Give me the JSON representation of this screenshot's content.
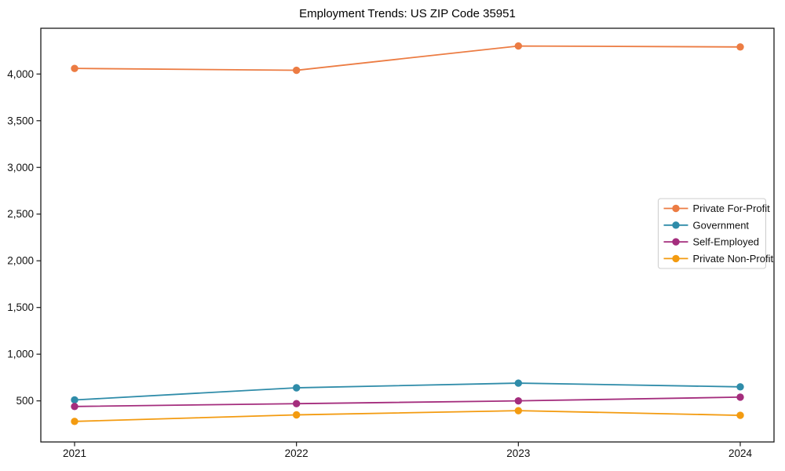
{
  "chart_data": {
    "type": "line",
    "title": "Employment Trends: US ZIP Code 35951",
    "xlabel": "",
    "ylabel": "",
    "x": [
      2021,
      2022,
      2023,
      2024
    ],
    "x_tick_labels": [
      "2021",
      "2022",
      "2023",
      "2024"
    ],
    "yticks": [
      500,
      1000,
      1500,
      2000,
      2500,
      3000,
      3500,
      4000
    ],
    "ytick_labels": [
      "500",
      "1,000",
      "1,500",
      "2,000",
      "2,500",
      "3,000",
      "3,500",
      "4,000"
    ],
    "ylim": [
      60,
      4490
    ],
    "grid": false,
    "legend_position": "center-right",
    "frame": true,
    "colors": {
      "private_for_profit": "#ec7c43",
      "government": "#2f8ca9",
      "self_employed": "#a42d7d",
      "private_non_profit": "#f39b10",
      "axis": "#1a1a1a",
      "legend_border": "#cccccc",
      "background": "#ffffff"
    },
    "series": [
      {
        "name": "Private For-Profit",
        "color": "#ec7c43",
        "values": [
          4060,
          4040,
          4300,
          4290
        ]
      },
      {
        "name": "Government",
        "color": "#2f8ca9",
        "values": [
          510,
          640,
          690,
          650
        ]
      },
      {
        "name": "Self-Employed",
        "color": "#a42d7d",
        "values": [
          440,
          470,
          500,
          540
        ]
      },
      {
        "name": "Private Non-Profit",
        "color": "#f39b10",
        "values": [
          280,
          350,
          395,
          345
        ]
      }
    ]
  }
}
